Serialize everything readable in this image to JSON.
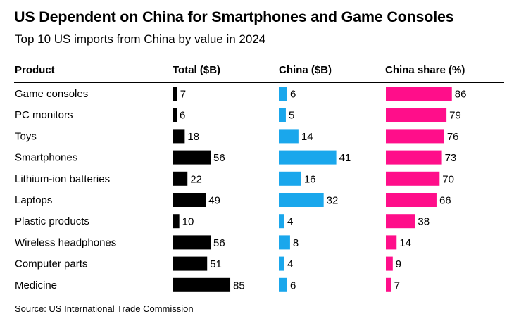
{
  "title": "US Dependent on China for Smartphones and Game Consoles",
  "subtitle": "Top 10 US imports from China by value in 2024",
  "source": "Source: US International Trade Commission",
  "colors": {
    "total": "#000000",
    "china": "#1aa7ec",
    "share": "#ff0e8a"
  },
  "chart_data": {
    "type": "table",
    "columns": [
      "Product",
      "Total ($B)",
      "China ($B)",
      "China share (%)"
    ],
    "rows": [
      {
        "product": "Game consoles",
        "total": 7,
        "china": 6,
        "share": 86
      },
      {
        "product": "PC monitors",
        "total": 6,
        "china": 5,
        "share": 79
      },
      {
        "product": "Toys",
        "total": 18,
        "china": 14,
        "share": 76
      },
      {
        "product": "Smartphones",
        "total": 56,
        "china": 41,
        "share": 73
      },
      {
        "product": "Lithium-ion batteries",
        "total": 22,
        "china": 16,
        "share": 70
      },
      {
        "product": "Laptops",
        "total": 49,
        "china": 32,
        "share": 66
      },
      {
        "product": "Plastic products",
        "total": 10,
        "china": 4,
        "share": 38
      },
      {
        "product": "Wireless headphones",
        "total": 56,
        "china": 8,
        "share": 14
      },
      {
        "product": "Computer parts",
        "total": 51,
        "china": 4,
        "share": 9
      },
      {
        "product": "Medicine",
        "total": 85,
        "china": 6,
        "share": 7
      }
    ]
  }
}
